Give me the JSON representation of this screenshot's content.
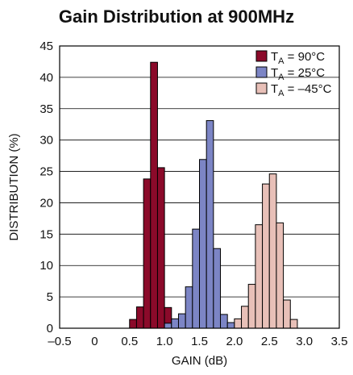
{
  "chart_data": {
    "type": "bar",
    "title": "Gain Distribution at 900MHz",
    "xlabel": "GAIN (dB)",
    "ylabel": "DISTRIBUTION (%)",
    "xlim": [
      -0.5,
      3.5
    ],
    "ylim": [
      0,
      45
    ],
    "xticks": [
      -0.5,
      0,
      0.5,
      1.0,
      1.5,
      2.0,
      2.5,
      3.0,
      3.5
    ],
    "xtick_labels": [
      "–0.5",
      "0",
      "0.5",
      "1.0",
      "1.5",
      "2.0",
      "2.5",
      "3.0",
      "3.5"
    ],
    "yticks": [
      0,
      5,
      10,
      15,
      20,
      25,
      30,
      35,
      40,
      45
    ],
    "grid": true,
    "legend_position": "top-right",
    "bin_width": 0.1,
    "series": [
      {
        "name": "T_A = 90°C",
        "label_main": "T",
        "label_sub": "A",
        "label_rest": " = 90°C",
        "color": "#8b0a2a",
        "bins": [
          {
            "x": 0.55,
            "y": 1.4
          },
          {
            "x": 0.65,
            "y": 3.4
          },
          {
            "x": 0.75,
            "y": 23.8
          },
          {
            "x": 0.85,
            "y": 42.4
          },
          {
            "x": 0.95,
            "y": 25.6
          },
          {
            "x": 1.05,
            "y": 3.3
          },
          {
            "x": 1.15,
            "y": 0.9
          }
        ]
      },
      {
        "name": "T_A = 25°C",
        "label_main": "T",
        "label_sub": "A",
        "label_rest": " = 25°C",
        "color": "#7c85c5",
        "bins": [
          {
            "x": 1.05,
            "y": 0.8
          },
          {
            "x": 1.15,
            "y": 1.5
          },
          {
            "x": 1.25,
            "y": 2.3
          },
          {
            "x": 1.35,
            "y": 6.6
          },
          {
            "x": 1.45,
            "y": 15.8
          },
          {
            "x": 1.55,
            "y": 26.9
          },
          {
            "x": 1.65,
            "y": 33.1
          },
          {
            "x": 1.75,
            "y": 12.7
          },
          {
            "x": 1.85,
            "y": 2.2
          },
          {
            "x": 1.95,
            "y": 0.9
          }
        ]
      },
      {
        "name": "T_A = –45°C",
        "label_main": "T",
        "label_sub": "A",
        "label_rest": " = –45°C",
        "color": "#e8c0b8",
        "bins": [
          {
            "x": 2.05,
            "y": 1.5
          },
          {
            "x": 2.15,
            "y": 3.5
          },
          {
            "x": 2.25,
            "y": 7.0
          },
          {
            "x": 2.35,
            "y": 16.5
          },
          {
            "x": 2.45,
            "y": 23.0
          },
          {
            "x": 2.55,
            "y": 24.6
          },
          {
            "x": 2.65,
            "y": 16.8
          },
          {
            "x": 2.75,
            "y": 4.5
          },
          {
            "x": 2.85,
            "y": 1.4
          }
        ]
      }
    ]
  }
}
